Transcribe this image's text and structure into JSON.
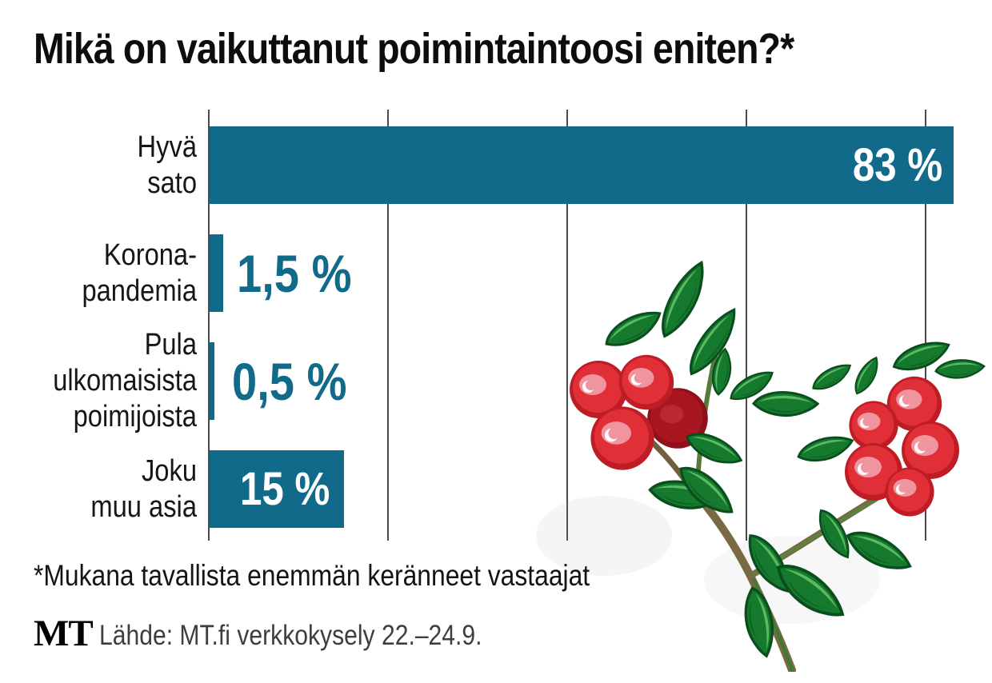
{
  "title": "Mikä on vaikuttanut poimintaintoosi eniten?*",
  "chart_data": {
    "type": "bar",
    "orientation": "horizontal",
    "title": "Mikä on vaikuttanut poimintaintoosi eniten?*",
    "categories": [
      "Hyvä sato",
      "Korona-pandemia",
      "Pula ulkomaisista poimijoista",
      "Joku muu asia"
    ],
    "values": [
      83,
      1.5,
      0.5,
      15
    ],
    "value_labels": [
      "83 %",
      "1,5 %",
      "0,5 %",
      "15 %"
    ],
    "category_label_lines": [
      [
        "Hyvä",
        "sato"
      ],
      [
        "Korona-",
        "pandemia"
      ],
      [
        "Pula",
        "ulkomaisista",
        "poimijoista"
      ],
      [
        "Joku",
        "muu asia"
      ]
    ],
    "unit": "%",
    "xlim": [
      0,
      100
    ],
    "x_gridlines_percent": [
      0,
      20,
      40,
      60,
      80
    ],
    "axis_tick_labels_shown": false,
    "legend": false,
    "grid": true,
    "bar_color": "#116a8a",
    "value_label_inside_color": "#ffffff",
    "value_label_outside_color": "#116a8a"
  },
  "footnote": "*Mukana tavallista enemmän keränneet vastaajat",
  "source": {
    "logo_text": "MT",
    "label": "Lähde: MT.fi verkkokysely 22.–24.9."
  },
  "illustration": {
    "name": "lingonberry-branch",
    "colors": {
      "berry_bright": "#e02f36",
      "berry_rim": "#bf1d26",
      "berry_dark": "#a8161f",
      "berry_highlight": "#f0949f",
      "leaf": "#157a2d",
      "leaf_highlight": "#5cb963",
      "stem": "#7a6a44"
    }
  }
}
